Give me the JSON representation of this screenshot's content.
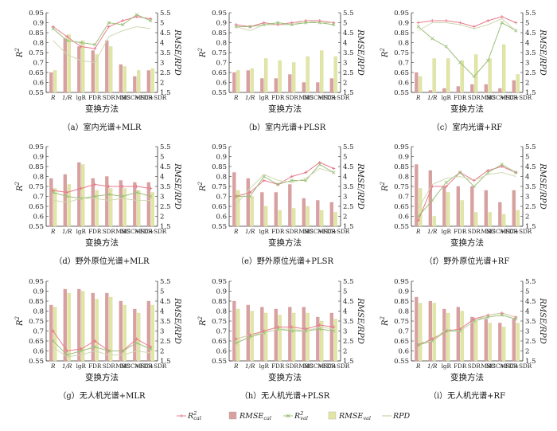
{
  "figure": {
    "legend": [
      {
        "key": "r2cal",
        "base": "R",
        "sup": "2",
        "sub": "cal",
        "italic": true,
        "mark": "plus"
      },
      {
        "key": "rmsecal",
        "base": "RMSE",
        "sub": "cal",
        "italic": true,
        "mark": "bar"
      },
      {
        "key": "r2val",
        "base": "R",
        "sup": "2",
        "sub": "val",
        "italic": true,
        "mark": "x"
      },
      {
        "key": "rmseval",
        "base": "RMSE",
        "sub": "val",
        "italic": true,
        "mark": "bar"
      },
      {
        "key": "rpd",
        "base": "RPD",
        "italic": true,
        "mark": "line"
      }
    ],
    "colors": {
      "r2cal": "#e87b8c",
      "rmsecal": "#d9a0a0",
      "r2val": "#9cbf7a",
      "rmseval": "#e2e6a4",
      "rpd": "#cfd9b2",
      "axis": "#333333"
    }
  },
  "chart_data": [
    {
      "type": "bar",
      "panel": "(a)",
      "caption": "（a）室内光谱+MLR",
      "xlabel": "变换方法",
      "ylabel_left": "R2",
      "ylabel_right": "RMSE/RPD",
      "categories": [
        "R",
        "1/R",
        "lgR",
        "FDR",
        "SDR",
        "MSC",
        "MSC+FDR",
        "MSC+SDR"
      ],
      "ylim_left": [
        0.55,
        0.95
      ],
      "ylim_right": [
        1.5,
        5.5
      ],
      "yticks_left": [
        0.55,
        0.6,
        0.65,
        0.7,
        0.75,
        0.8,
        0.85,
        0.9,
        0.95
      ],
      "yticks_right": [
        1.5,
        2,
        2.5,
        3,
        3.5,
        4,
        4.5,
        5,
        5.5
      ],
      "series": [
        {
          "key": "r2cal",
          "axis": "left",
          "values": [
            0.88,
            0.83,
            0.78,
            0.77,
            0.88,
            0.91,
            0.93,
            0.92
          ]
        },
        {
          "key": "rmsecal",
          "axis": "right",
          "values": [
            2.5,
            4.2,
            3.8,
            3.6,
            4.1,
            2.9,
            2.3,
            2.6
          ]
        },
        {
          "key": "r2val",
          "axis": "left",
          "values": [
            0.87,
            0.81,
            0.8,
            0.79,
            0.9,
            0.89,
            0.94,
            0.91
          ]
        },
        {
          "key": "rmseval",
          "axis": "right",
          "values": [
            2.6,
            4.4,
            4.1,
            3.4,
            3.8,
            2.8,
            2.6,
            2.7
          ]
        },
        {
          "key": "rpd",
          "axis": "right",
          "values": [
            4.1,
            3.4,
            3.1,
            3.0,
            4.3,
            4.6,
            4.8,
            4.7
          ]
        }
      ]
    },
    {
      "type": "bar",
      "panel": "(b)",
      "caption": "（b）室内光谱+PLSR",
      "xlabel": "变换方法",
      "ylabel_left": "R2",
      "ylabel_right": "RMSE/RPD",
      "categories": [
        "R",
        "1/R",
        "lgR",
        "FDR",
        "SDR",
        "MSC",
        "MSC+FDR",
        "MSC+SDR"
      ],
      "ylim_left": [
        0.55,
        0.95
      ],
      "ylim_right": [
        1.5,
        5.5
      ],
      "yticks_left": [
        0.55,
        0.6,
        0.65,
        0.7,
        0.75,
        0.8,
        0.85,
        0.9,
        0.95
      ],
      "yticks_right": [
        1.5,
        2,
        2.5,
        3,
        3.5,
        4,
        4.5,
        5,
        5.5
      ],
      "series": [
        {
          "key": "r2cal",
          "axis": "left",
          "values": [
            0.89,
            0.88,
            0.9,
            0.89,
            0.9,
            0.91,
            0.91,
            0.9
          ]
        },
        {
          "key": "rmsecal",
          "axis": "right",
          "values": [
            2.5,
            2.6,
            2.2,
            2.2,
            2.4,
            2.0,
            2.0,
            2.2
          ]
        },
        {
          "key": "r2val",
          "axis": "left",
          "values": [
            0.88,
            0.88,
            0.89,
            0.9,
            0.89,
            0.9,
            0.9,
            0.89
          ]
        },
        {
          "key": "rmseval",
          "axis": "right",
          "values": [
            2.6,
            2.7,
            3.2,
            3.1,
            3.0,
            3.3,
            3.6,
            3.3
          ]
        },
        {
          "key": "rpd",
          "axis": "right",
          "values": [
            4.8,
            4.6,
            4.9,
            4.9,
            4.9,
            5.1,
            5.0,
            5.0
          ]
        }
      ]
    },
    {
      "type": "bar",
      "panel": "(c)",
      "caption": "（c）室内光谱+RF",
      "xlabel": "变换方法",
      "ylabel_left": "R2",
      "ylabel_right": "RMSE/RPD",
      "categories": [
        "R",
        "1/R",
        "lgR",
        "FDR",
        "SDR",
        "MSC",
        "MSC+FDR",
        "MSC+SDR"
      ],
      "ylim_left": [
        0.55,
        0.95
      ],
      "ylim_right": [
        1.5,
        5.5
      ],
      "yticks_left": [
        0.55,
        0.6,
        0.65,
        0.7,
        0.75,
        0.8,
        0.85,
        0.9,
        0.95
      ],
      "yticks_right": [
        1.5,
        2,
        2.5,
        3,
        3.5,
        4,
        4.5,
        5,
        5.5
      ],
      "series": [
        {
          "key": "r2cal",
          "axis": "left",
          "values": [
            0.9,
            0.91,
            0.91,
            0.9,
            0.88,
            0.91,
            0.93,
            0.9
          ]
        },
        {
          "key": "rmsecal",
          "axis": "right",
          "values": [
            2.5,
            1.6,
            1.7,
            1.8,
            1.9,
            1.9,
            1.7,
            2.1
          ]
        },
        {
          "key": "r2val",
          "axis": "left",
          "values": [
            0.88,
            0.82,
            0.78,
            0.7,
            0.63,
            0.71,
            0.9,
            0.86
          ]
        },
        {
          "key": "rmseval",
          "axis": "right",
          "values": [
            2.3,
            3.2,
            3.2,
            3.1,
            3.4,
            3.2,
            3.9,
            2.4
          ]
        },
        {
          "key": "rpd",
          "axis": "right",
          "values": [
            4.6,
            5.0,
            5.0,
            4.9,
            4.7,
            4.9,
            5.2,
            4.6
          ]
        }
      ]
    },
    {
      "type": "bar",
      "panel": "(d)",
      "caption": "（d）野外原位光谱+MLR",
      "xlabel": "变换方法",
      "ylabel_left": "R2",
      "ylabel_right": "RMSE/RPD",
      "categories": [
        "R",
        "1/R",
        "lgR",
        "FDR",
        "SDR",
        "MSC",
        "MSC+FDR",
        "MSC+SDR"
      ],
      "ylim_left": [
        0.55,
        0.95
      ],
      "ylim_right": [
        1.5,
        5.5
      ],
      "yticks_left": [
        0.55,
        0.6,
        0.65,
        0.7,
        0.75,
        0.8,
        0.85,
        0.9,
        0.95
      ],
      "yticks_right": [
        1.5,
        2,
        2.5,
        3,
        3.5,
        4,
        4.5,
        5,
        5.5
      ],
      "series": [
        {
          "key": "r2cal",
          "axis": "left",
          "values": [
            0.73,
            0.72,
            0.74,
            0.76,
            0.75,
            0.75,
            0.75,
            0.74
          ]
        },
        {
          "key": "rmsecal",
          "axis": "right",
          "values": [
            3.9,
            4.1,
            4.7,
            3.9,
            4.0,
            3.8,
            3.7,
            3.7
          ]
        },
        {
          "key": "r2val",
          "axis": "left",
          "values": [
            0.72,
            0.7,
            0.69,
            0.7,
            0.71,
            0.7,
            0.72,
            0.7
          ]
        },
        {
          "key": "rmseval",
          "axis": "right",
          "values": [
            3.4,
            3.6,
            4.6,
            3.3,
            3.4,
            3.4,
            3.3,
            3.2
          ]
        },
        {
          "key": "rpd",
          "axis": "right",
          "values": [
            2.8,
            2.7,
            2.9,
            2.9,
            2.8,
            2.9,
            2.8,
            2.8
          ]
        }
      ]
    },
    {
      "type": "bar",
      "panel": "(e)",
      "caption": "（e）野外原位光谱+PLSR",
      "xlabel": "变换方法",
      "ylabel_left": "R2",
      "ylabel_right": "RMSE/RPD",
      "categories": [
        "R",
        "1/R",
        "lgR",
        "FDR",
        "SDR",
        "MSC",
        "MSC+FDR",
        "MSC+SDR"
      ],
      "ylim_left": [
        0.55,
        0.95
      ],
      "ylim_right": [
        1.5,
        5.5
      ],
      "yticks_left": [
        0.55,
        0.6,
        0.65,
        0.7,
        0.75,
        0.8,
        0.85,
        0.9,
        0.95
      ],
      "yticks_right": [
        1.5,
        2,
        2.5,
        3,
        3.5,
        4,
        4.5,
        5,
        5.5
      ],
      "series": [
        {
          "key": "r2cal",
          "axis": "left",
          "values": [
            0.7,
            0.72,
            0.78,
            0.76,
            0.8,
            0.82,
            0.87,
            0.84
          ]
        },
        {
          "key": "rmsecal",
          "axis": "right",
          "values": [
            4.2,
            3.9,
            3.2,
            3.2,
            3.6,
            2.9,
            2.8,
            2.7
          ]
        },
        {
          "key": "r2val",
          "axis": "left",
          "values": [
            0.7,
            0.7,
            0.8,
            0.76,
            0.78,
            0.78,
            0.86,
            0.82
          ]
        },
        {
          "key": "rmseval",
          "axis": "right",
          "values": [
            3.3,
            3.0,
            2.5,
            2.3,
            2.4,
            2.5,
            2.3,
            2.2
          ]
        },
        {
          "key": "rpd",
          "axis": "right",
          "values": [
            2.6,
            3.4,
            4.1,
            3.8,
            3.7,
            3.9,
            4.4,
            4.2
          ]
        }
      ]
    },
    {
      "type": "bar",
      "panel": "(f)",
      "caption": "（f）野外原位光谱+RF",
      "xlabel": "变换方法",
      "ylabel_left": "R2",
      "ylabel_right": "RMSE/RPD",
      "categories": [
        "R",
        "1/R",
        "lgR",
        "FDR",
        "SDR",
        "MSC",
        "MSC+FDR",
        "MSC+SDR"
      ],
      "ylim_left": [
        0.55,
        0.95
      ],
      "ylim_right": [
        1.5,
        5.5
      ],
      "yticks_left": [
        0.55,
        0.6,
        0.65,
        0.7,
        0.75,
        0.8,
        0.85,
        0.9,
        0.95
      ],
      "yticks_right": [
        1.5,
        2,
        2.5,
        3,
        3.5,
        4,
        4.5,
        5,
        5.5
      ],
      "series": [
        {
          "key": "r2cal",
          "axis": "left",
          "values": [
            0.58,
            0.75,
            0.75,
            0.82,
            0.78,
            0.83,
            0.85,
            0.82
          ]
        },
        {
          "key": "rmsecal",
          "axis": "right",
          "values": [
            4.6,
            4.3,
            3.5,
            3.5,
            3.5,
            3.3,
            2.7,
            3.3
          ]
        },
        {
          "key": "r2val",
          "axis": "left",
          "values": [
            0.6,
            0.68,
            0.77,
            0.82,
            0.75,
            0.82,
            0.86,
            0.82
          ]
        },
        {
          "key": "rmseval",
          "axis": "right",
          "values": [
            3.4,
            2.0,
            3.2,
            2.8,
            2.2,
            2.2,
            2.1,
            2.3
          ]
        },
        {
          "key": "rpd",
          "axis": "right",
          "values": [
            2.4,
            3.6,
            3.9,
            4.0,
            3.8,
            4.1,
            4.2,
            4.0
          ]
        }
      ]
    },
    {
      "type": "bar",
      "panel": "(g)",
      "caption": "（g）无人机光谱+MLR",
      "xlabel": "变换方法",
      "ylabel_left": "R2",
      "ylabel_right": "RMSE/RPD",
      "categories": [
        "R",
        "1/R",
        "lgR",
        "FDR",
        "SDR",
        "MSC",
        "MSC+FDR",
        "MSC+SDR"
      ],
      "ylim_left": [
        0.55,
        0.95
      ],
      "ylim_right": [
        1.5,
        5.5
      ],
      "yticks_left": [
        0.55,
        0.6,
        0.65,
        0.7,
        0.75,
        0.8,
        0.85,
        0.9,
        0.95
      ],
      "yticks_right": [
        1.5,
        2,
        2.5,
        3,
        3.5,
        4,
        4.5,
        5,
        5.5
      ],
      "series": [
        {
          "key": "r2cal",
          "axis": "left",
          "values": [
            0.7,
            0.6,
            0.61,
            0.65,
            0.6,
            0.6,
            0.66,
            0.62
          ]
        },
        {
          "key": "rmsecal",
          "axis": "right",
          "values": [
            4.3,
            5.1,
            5.1,
            4.9,
            4.9,
            4.5,
            4.1,
            4.5
          ]
        },
        {
          "key": "r2val",
          "axis": "left",
          "values": [
            0.65,
            0.58,
            0.6,
            0.62,
            0.6,
            0.6,
            0.64,
            0.61
          ]
        },
        {
          "key": "rmseval",
          "axis": "right",
          "values": [
            4.2,
            4.9,
            5.0,
            4.6,
            4.7,
            4.3,
            3.9,
            4.3
          ]
        },
        {
          "key": "rpd",
          "axis": "right",
          "values": [
            2.2,
            1.7,
            1.8,
            2.0,
            1.8,
            1.8,
            2.0,
            1.9
          ]
        }
      ]
    },
    {
      "type": "bar",
      "panel": "(h)",
      "caption": "（h）无人机光谱+PLSR",
      "xlabel": "变换方法",
      "ylabel_left": "R2",
      "ylabel_right": "RMSE/RPD",
      "categories": [
        "R",
        "1/R",
        "lgR",
        "FDR",
        "SDR",
        "MSC",
        "MSC+FDR",
        "MSC+SDR"
      ],
      "ylim_left": [
        0.55,
        0.95
      ],
      "ylim_right": [
        1.5,
        5.5
      ],
      "yticks_left": [
        0.55,
        0.6,
        0.65,
        0.7,
        0.75,
        0.8,
        0.85,
        0.9,
        0.95
      ],
      "yticks_right": [
        1.5,
        2,
        2.5,
        3,
        3.5,
        4,
        4.5,
        5,
        5.5
      ],
      "series": [
        {
          "key": "r2cal",
          "axis": "left",
          "values": [
            0.66,
            0.68,
            0.7,
            0.72,
            0.72,
            0.71,
            0.73,
            0.72
          ]
        },
        {
          "key": "rmsecal",
          "axis": "right",
          "values": [
            4.5,
            4.3,
            4.2,
            4.1,
            4.2,
            4.2,
            3.7,
            3.9
          ]
        },
        {
          "key": "r2val",
          "axis": "left",
          "values": [
            0.64,
            0.67,
            0.69,
            0.71,
            0.7,
            0.7,
            0.71,
            0.7
          ]
        },
        {
          "key": "rmseval",
          "axis": "right",
          "values": [
            4.1,
            4.0,
            3.9,
            3.8,
            3.9,
            3.9,
            3.5,
            3.6
          ]
        },
        {
          "key": "rpd",
          "axis": "right",
          "values": [
            2.6,
            2.8,
            2.9,
            3.1,
            3.1,
            3.0,
            3.2,
            3.1
          ]
        }
      ]
    },
    {
      "type": "bar",
      "panel": "(i)",
      "caption": "（i）无人机光谱+RF",
      "xlabel": "变换方法",
      "ylabel_left": "R2",
      "ylabel_right": "RMSE/RPD",
      "categories": [
        "R",
        "1/R",
        "lgR",
        "FDR",
        "SDR",
        "MSC",
        "MSC+FDR",
        "MSC+SDR"
      ],
      "ylim_left": [
        0.55,
        0.95
      ],
      "ylim_right": [
        1.5,
        5.5
      ],
      "yticks_left": [
        0.55,
        0.6,
        0.65,
        0.7,
        0.75,
        0.8,
        0.85,
        0.9,
        0.95
      ],
      "yticks_right": [
        1.5,
        2,
        2.5,
        3,
        3.5,
        4,
        4.5,
        5,
        5.5
      ],
      "series": [
        {
          "key": "r2cal",
          "axis": "left",
          "values": [
            0.63,
            0.66,
            0.7,
            0.71,
            0.76,
            0.78,
            0.79,
            0.77
          ]
        },
        {
          "key": "rmsecal",
          "axis": "right",
          "values": [
            4.7,
            4.5,
            4.1,
            4.2,
            3.7,
            3.6,
            3.4,
            3.6
          ]
        },
        {
          "key": "r2val",
          "axis": "left",
          "values": [
            0.63,
            0.65,
            0.7,
            0.7,
            0.75,
            0.77,
            0.78,
            0.76
          ]
        },
        {
          "key": "rmseval",
          "axis": "right",
          "values": [
            4.4,
            4.4,
            3.9,
            4.0,
            3.5,
            3.4,
            3.2,
            3.4
          ]
        },
        {
          "key": "rpd",
          "axis": "right",
          "values": [
            2.4,
            2.5,
            3.1,
            3.0,
            3.5,
            3.8,
            3.9,
            3.7
          ]
        }
      ]
    }
  ]
}
